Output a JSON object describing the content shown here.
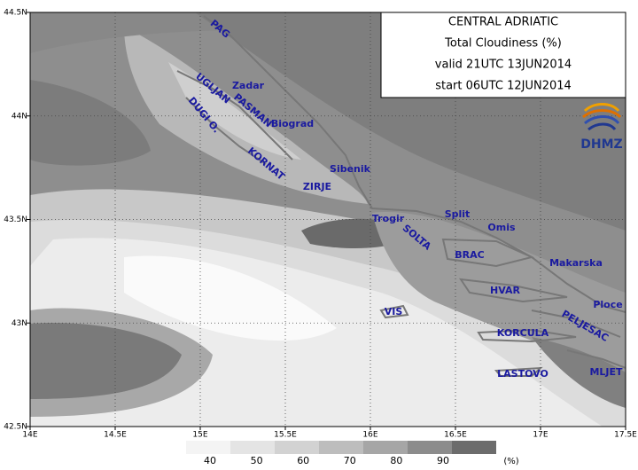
{
  "title_box": {
    "lines": [
      "CENTRAL ADRIATIC",
      "Total Cloudiness (%)",
      "valid 21UTC 13JUN2014",
      "start 06UTC 12JUN2014"
    ]
  },
  "logo": "DHMZ",
  "lat_labels": [
    "44.5N",
    "44N",
    "43.5N",
    "43N",
    "42.5N"
  ],
  "lon_labels": [
    "14E",
    "14.5E",
    "15E",
    "15.5E",
    "16E",
    "16.5E",
    "17E",
    "17.5E"
  ],
  "places": [
    "PAG",
    "Zadar",
    "UGLJAN",
    "PASMAN",
    "Biograd",
    "DUGI O.",
    "KORNAT",
    "Sibenik",
    "ZIRJE",
    "Trogir",
    "Split",
    "Omis",
    "SOLTA",
    "BRAC",
    "Makarska",
    "HVAR",
    "Ploce",
    "VIS",
    "PELJESAC",
    "KORCULA",
    "MLJET",
    "LASTOVO"
  ],
  "legend": {
    "labels": [
      "40",
      "50",
      "60",
      "70",
      "80",
      "90"
    ],
    "unit": "(%)"
  }
}
